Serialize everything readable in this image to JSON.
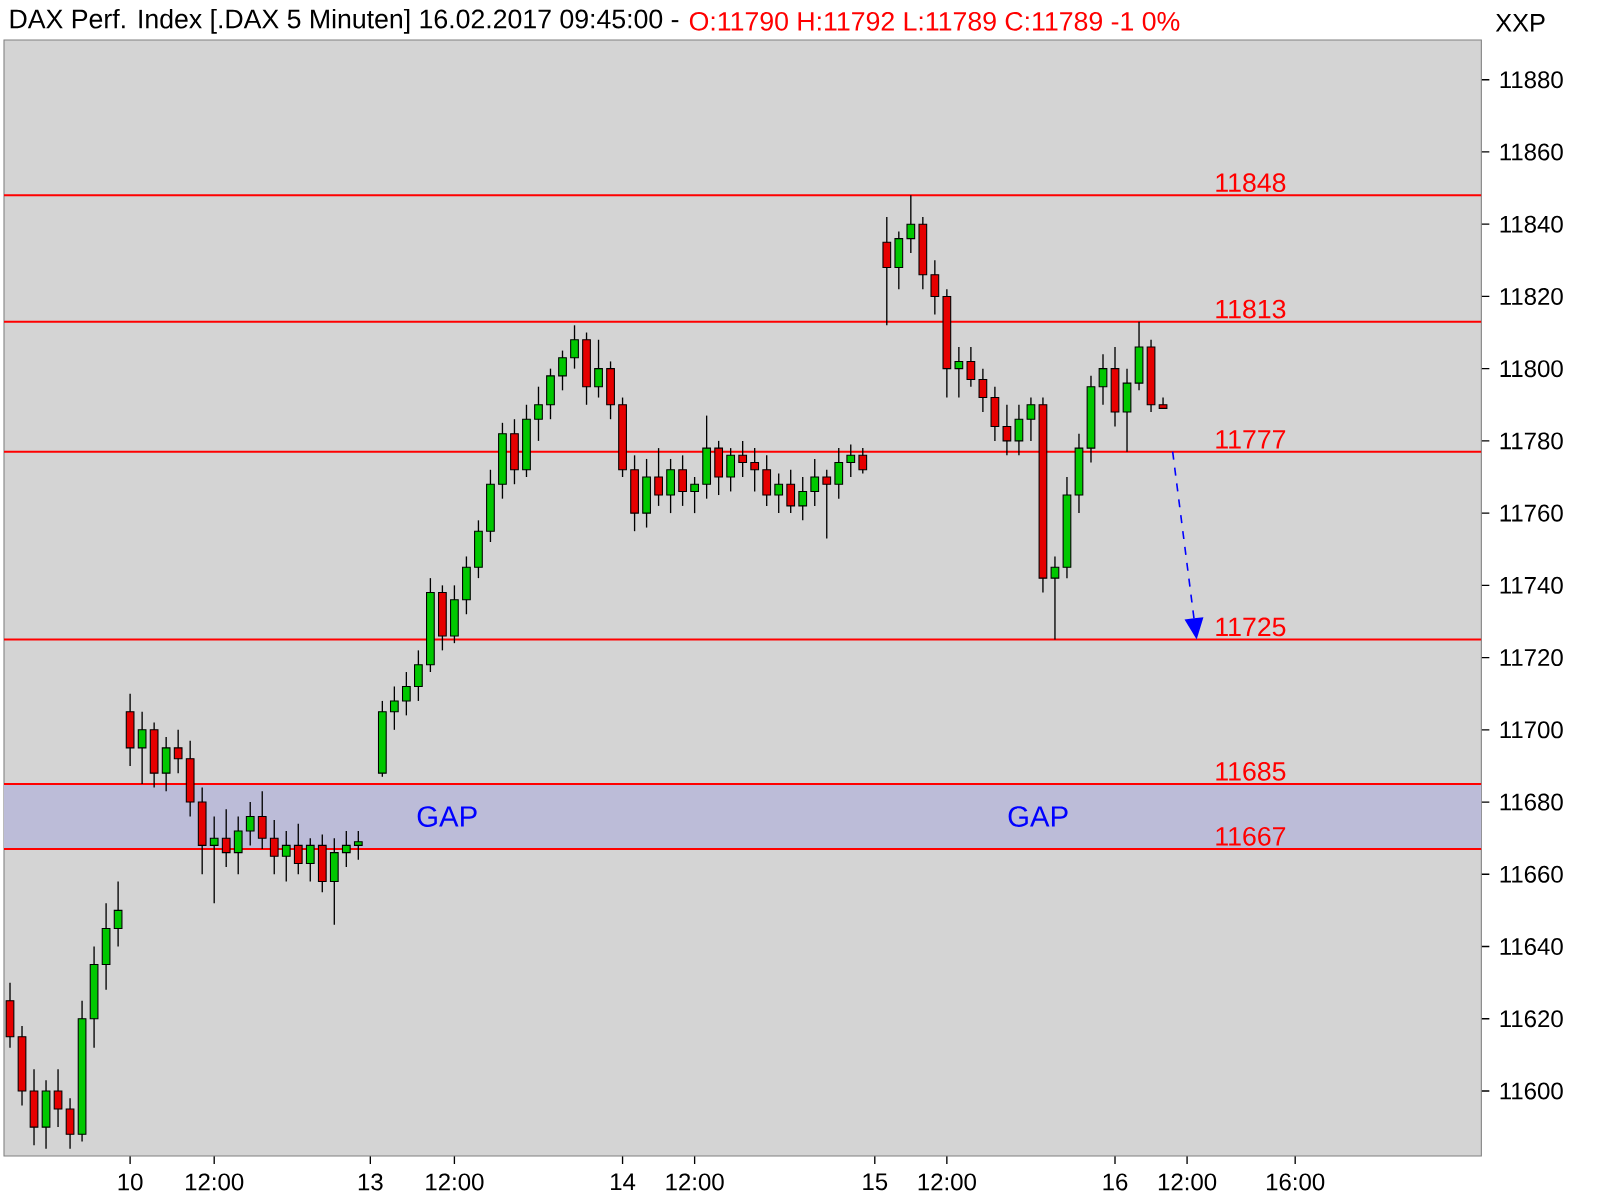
{
  "chart_data": {
    "type": "candlestick",
    "title": "DAX Perf. Index [.DAX  5 Minuten] 16.02.2017 09:45:00 -",
    "subtitle": "O:11790 H:11792 L:11789 C:11789 -1 0%",
    "ylabel": "XXP",
    "categories": [
      null,
      null,
      null,
      null,
      null,
      null,
      null,
      null,
      null,
      null,
      "10",
      null,
      null,
      null,
      null,
      null,
      null,
      "12:00",
      null,
      null,
      null,
      null,
      null,
      null,
      null,
      null,
      null,
      null,
      null,
      null,
      "13",
      null,
      null,
      null,
      null,
      null,
      null,
      "12:00",
      null,
      null,
      null,
      null,
      null,
      null,
      null,
      null,
      null,
      null,
      null,
      null,
      null,
      "14",
      null,
      null,
      null,
      null,
      null,
      "12:00",
      null,
      null,
      null,
      null,
      null,
      null,
      null,
      null,
      null,
      null,
      null,
      null,
      null,
      null,
      "15",
      null,
      null,
      null,
      null,
      null,
      "12:00",
      null,
      null,
      null,
      null,
      null,
      null,
      null,
      null,
      null,
      null,
      null,
      null,
      null,
      "16",
      null,
      null,
      null,
      null,
      null,
      "12:00",
      null,
      null,
      null,
      null,
      null,
      null,
      null,
      null,
      "16:00",
      null,
      null,
      null,
      null,
      null,
      null,
      null,
      null,
      null,
      null,
      null,
      null,
      null,
      null,
      null
    ],
    "ohlc": [
      [
        11625,
        11630,
        11612,
        11615
      ],
      [
        11615,
        11618,
        11596,
        11600
      ],
      [
        11600,
        11606,
        11585,
        11590
      ],
      [
        11590,
        11603,
        11584,
        11600
      ],
      [
        11600,
        11606,
        11590,
        11595
      ],
      [
        11595,
        11598,
        11584,
        11588
      ],
      [
        11588,
        11625,
        11586,
        11620
      ],
      [
        11620,
        11640,
        11612,
        11635
      ],
      [
        11635,
        11652,
        11628,
        11645
      ],
      [
        11645,
        11658,
        11640,
        11650
      ],
      [
        11705,
        11710,
        11690,
        11695
      ],
      [
        11695,
        11705,
        11685,
        11700
      ],
      [
        11700,
        11702,
        11684,
        11688
      ],
      [
        11688,
        11698,
        11683,
        11695
      ],
      [
        11695,
        11700,
        11688,
        11692
      ],
      [
        11692,
        11697,
        11676,
        11680
      ],
      [
        11680,
        11684,
        11660,
        11668
      ],
      [
        11668,
        11676,
        11652,
        11670
      ],
      [
        11670,
        11678,
        11662,
        11666
      ],
      [
        11666,
        11676,
        11660,
        11672
      ],
      [
        11672,
        11680,
        11668,
        11676
      ],
      [
        11676,
        11683,
        11667,
        11670
      ],
      [
        11670,
        11675,
        11660,
        11665
      ],
      [
        11665,
        11672,
        11658,
        11668
      ],
      [
        11668,
        11674,
        11660,
        11663
      ],
      [
        11663,
        11670,
        11658,
        11668
      ],
      [
        11668,
        11671,
        11655,
        11658
      ],
      [
        11658,
        11670,
        11646,
        11666
      ],
      [
        11666,
        11672,
        11662,
        11668
      ],
      [
        11668,
        11672,
        11664,
        11669
      ],
      null,
      [
        11688,
        11708,
        11687,
        11705
      ],
      [
        11705,
        11712,
        11700,
        11708
      ],
      [
        11708,
        11716,
        11704,
        11712
      ],
      [
        11712,
        11722,
        11708,
        11718
      ],
      [
        11718,
        11742,
        11716,
        11738
      ],
      [
        11738,
        11740,
        11722,
        11726
      ],
      [
        11726,
        11740,
        11724,
        11736
      ],
      [
        11736,
        11748,
        11732,
        11745
      ],
      [
        11745,
        11758,
        11742,
        11755
      ],
      [
        11755,
        11772,
        11752,
        11768
      ],
      [
        11768,
        11785,
        11764,
        11782
      ],
      [
        11782,
        11786,
        11768,
        11772
      ],
      [
        11772,
        11790,
        11770,
        11786
      ],
      [
        11786,
        11795,
        11780,
        11790
      ],
      [
        11790,
        11800,
        11786,
        11798
      ],
      [
        11798,
        11805,
        11794,
        11803
      ],
      [
        11803,
        11812,
        11800,
        11808
      ],
      [
        11808,
        11810,
        11790,
        11795
      ],
      [
        11795,
        11808,
        11792,
        11800
      ],
      [
        11800,
        11802,
        11786,
        11790
      ],
      [
        11790,
        11792,
        11770,
        11772
      ],
      [
        11772,
        11776,
        11755,
        11760
      ],
      [
        11760,
        11775,
        11756,
        11770
      ],
      [
        11770,
        11778,
        11762,
        11765
      ],
      [
        11765,
        11775,
        11760,
        11772
      ],
      [
        11772,
        11776,
        11762,
        11766
      ],
      [
        11766,
        11770,
        11760,
        11768
      ],
      [
        11768,
        11787,
        11764,
        11778
      ],
      [
        11778,
        11780,
        11765,
        11770
      ],
      [
        11770,
        11778,
        11766,
        11776
      ],
      [
        11776,
        11780,
        11770,
        11774
      ],
      [
        11774,
        11778,
        11766,
        11772
      ],
      [
        11772,
        11776,
        11762,
        11765
      ],
      [
        11765,
        11771,
        11760,
        11768
      ],
      [
        11768,
        11772,
        11760,
        11762
      ],
      [
        11762,
        11770,
        11758,
        11766
      ],
      [
        11766,
        11775,
        11762,
        11770
      ],
      [
        11770,
        11772,
        11753,
        11768
      ],
      [
        11768,
        11778,
        11764,
        11774
      ],
      [
        11774,
        11779,
        11770,
        11776
      ],
      [
        11776,
        11778,
        11771,
        11772
      ],
      null,
      [
        11835,
        11842,
        11812,
        11828
      ],
      [
        11828,
        11838,
        11822,
        11836
      ],
      [
        11836,
        11848,
        11832,
        11840
      ],
      [
        11840,
        11842,
        11822,
        11826
      ],
      [
        11826,
        11830,
        11815,
        11820
      ],
      [
        11820,
        11822,
        11792,
        11800
      ],
      [
        11800,
        11806,
        11792,
        11802
      ],
      [
        11802,
        11806,
        11795,
        11797
      ],
      [
        11797,
        11800,
        11788,
        11792
      ],
      [
        11792,
        11795,
        11780,
        11784
      ],
      [
        11784,
        11790,
        11776,
        11780
      ],
      [
        11780,
        11790,
        11776,
        11786
      ],
      [
        11786,
        11792,
        11780,
        11790
      ],
      [
        11790,
        11792,
        11738,
        11742
      ],
      [
        11742,
        11748,
        11725,
        11745
      ],
      [
        11745,
        11770,
        11742,
        11765
      ],
      [
        11765,
        11782,
        11760,
        11778
      ],
      [
        11778,
        11798,
        11774,
        11795
      ],
      [
        11795,
        11804,
        11790,
        11800
      ],
      [
        11800,
        11806,
        11784,
        11788
      ],
      [
        11788,
        11800,
        11777,
        11796
      ],
      [
        11796,
        11813,
        11794,
        11806
      ],
      [
        11806,
        11808,
        11788,
        11790
      ],
      [
        11790,
        11792,
        11789,
        11789
      ],
      null,
      null,
      null,
      null,
      null,
      null,
      null,
      null,
      null,
      null,
      null,
      null,
      null,
      null,
      null,
      null,
      null,
      null,
      null,
      null,
      null,
      null,
      null,
      null,
      null,
      null
    ],
    "ylim": [
      11582,
      11891
    ],
    "yticks": [
      11600,
      11620,
      11640,
      11660,
      11680,
      11700,
      11720,
      11740,
      11760,
      11780,
      11800,
      11820,
      11840,
      11860,
      11880
    ],
    "ref_lines": [
      {
        "axis": "y",
        "value": 11848,
        "label": "11848",
        "color": "#ff0000"
      },
      {
        "axis": "y",
        "value": 11813,
        "label": "11813",
        "color": "#ff0000"
      },
      {
        "axis": "y",
        "value": 11777,
        "label": "11777",
        "color": "#ff0000"
      },
      {
        "axis": "y",
        "value": 11725,
        "label": "11725",
        "color": "#ff0000"
      },
      {
        "axis": "y",
        "value": 11685,
        "label": "11685",
        "color": "#ff0000"
      },
      {
        "axis": "y",
        "value": 11667,
        "label": "11667",
        "color": "#ff0000"
      }
    ],
    "bands": [
      {
        "axis": "y",
        "from": 11667,
        "to": 11685,
        "color": "#bcbcd8"
      }
    ],
    "annotations": [
      "GAP",
      "GAP"
    ]
  }
}
